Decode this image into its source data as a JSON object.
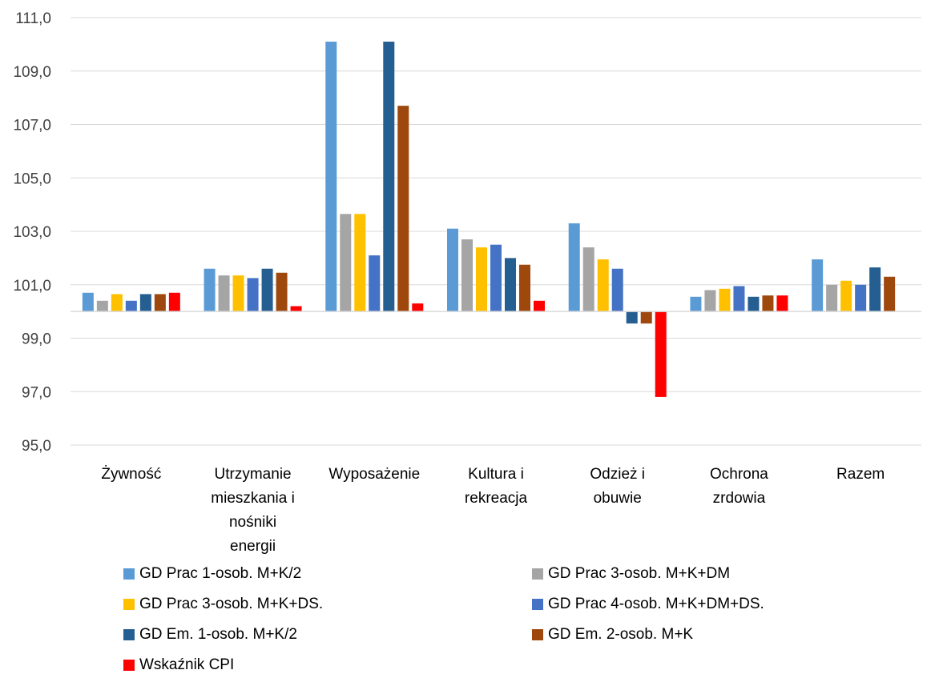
{
  "chart_data": {
    "type": "bar",
    "categories": [
      [
        "Żywność"
      ],
      [
        "Utrzymanie",
        "mieszkania i",
        "nośniki",
        "energii"
      ],
      [
        "Wyposażenie"
      ],
      [
        "Kultura i",
        "rekreacja"
      ],
      [
        "Odzież i",
        "obuwie"
      ],
      [
        "Ochrona",
        "zrdowia"
      ],
      [
        "Razem"
      ]
    ],
    "baseline": 100.0,
    "ylim": [
      95.0,
      111.0
    ],
    "yticks": [
      "95,0",
      "97,0",
      "99,0",
      "101,0",
      "103,0",
      "105,0",
      "107,0",
      "109,0",
      "111,0"
    ],
    "ytick_values": [
      95,
      97,
      99,
      101,
      103,
      105,
      107,
      109,
      111
    ],
    "grid": true,
    "legend_position": "bottom",
    "series": [
      {
        "name": "GD Prac 1-osob. M+K/2",
        "color": "#5B9BD5",
        "values": [
          100.7,
          101.6,
          110.1,
          103.1,
          103.3,
          100.55,
          101.95
        ]
      },
      {
        "name": "GD Prac 3-osob. M+K+DM",
        "color": "#A5A5A5",
        "values": [
          100.4,
          101.35,
          103.65,
          102.7,
          102.4,
          100.8,
          101.0
        ]
      },
      {
        "name": "GD Prac 3-osob. M+K+DS.",
        "color": "#FFC000",
        "values": [
          100.65,
          101.35,
          103.65,
          102.4,
          101.95,
          100.85,
          101.15
        ]
      },
      {
        "name": "GD Prac 4-osob. M+K+DM+DS.",
        "color": "#4472C4",
        "values": [
          100.4,
          101.25,
          102.1,
          102.5,
          101.6,
          100.95,
          101.0
        ]
      },
      {
        "name": "GD Em. 1-osob. M+K/2",
        "color": "#255E91",
        "values": [
          100.65,
          101.6,
          110.1,
          102.0,
          99.55,
          100.55,
          101.65
        ]
      },
      {
        "name": "GD Em. 2-osob. M+K",
        "color": "#9E480E",
        "values": [
          100.65,
          101.45,
          107.7,
          101.75,
          99.55,
          100.6,
          101.3
        ]
      },
      {
        "name": "Wskaźnik CPI",
        "color": "#FF0000",
        "values": [
          100.7,
          100.2,
          100.3,
          100.4,
          96.8,
          100.6,
          null
        ]
      }
    ]
  }
}
